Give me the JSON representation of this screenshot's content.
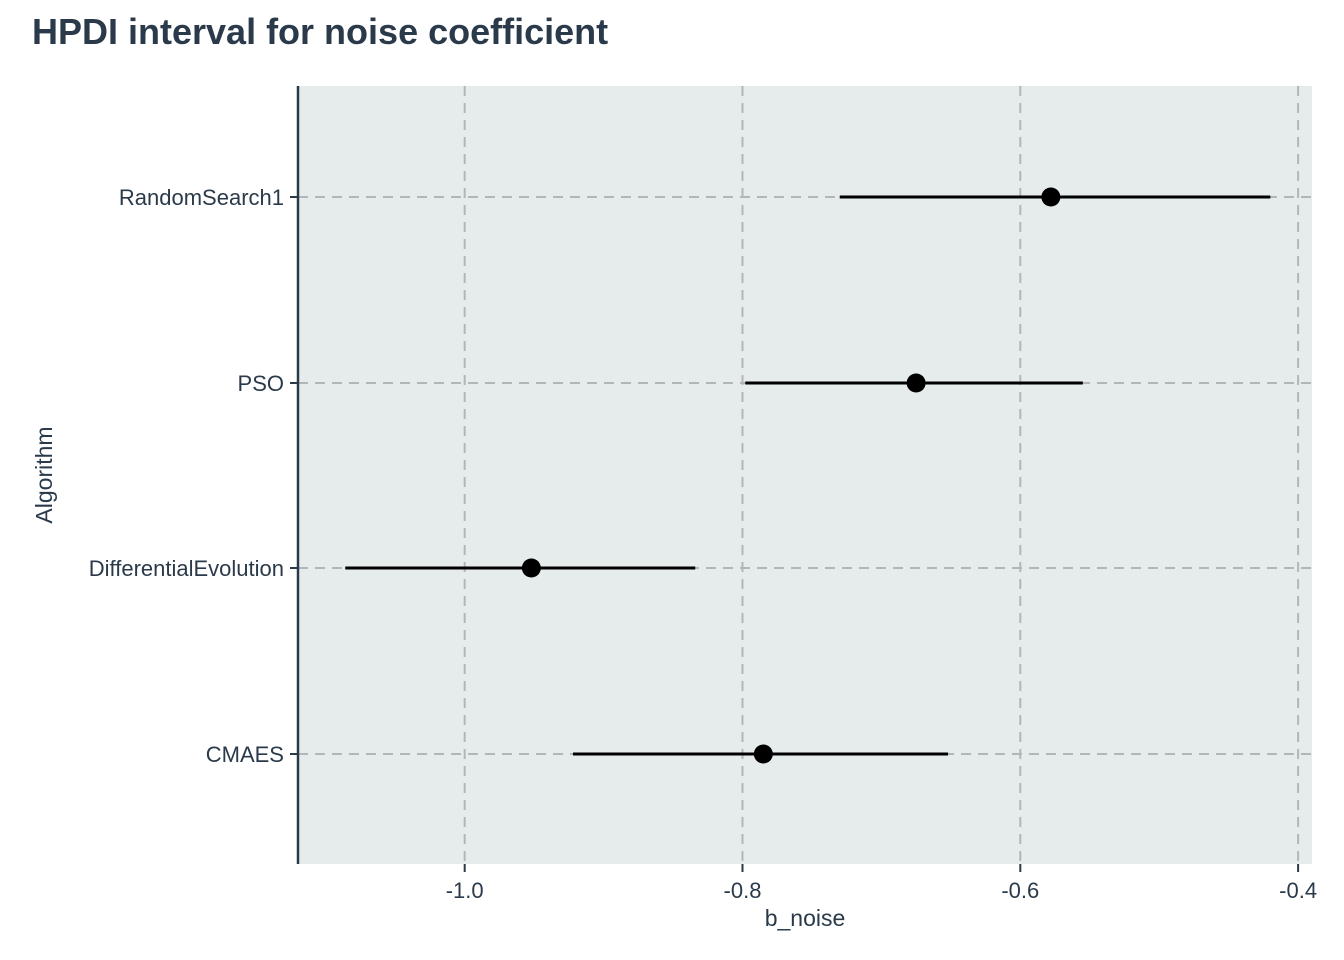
{
  "chart_data": {
    "type": "scatter",
    "title": "HPDI interval for noise coefficient",
    "xlabel": "b_noise",
    "ylabel": "Algorithm",
    "xlim": [
      -1.12,
      -0.39
    ],
    "xticks": [
      -1.0,
      -0.8,
      -0.6,
      -0.4
    ],
    "xtick_labels": [
      "-1.0",
      "-0.8",
      "-0.6",
      "-0.4"
    ],
    "categories": [
      "RandomSearch1",
      "PSO",
      "DifferentialEvolution",
      "CMAES"
    ],
    "points": [
      {
        "category": "RandomSearch1",
        "mean": -0.578,
        "lower": -0.73,
        "upper": -0.42
      },
      {
        "category": "PSO",
        "mean": -0.675,
        "lower": -0.798,
        "upper": -0.555
      },
      {
        "category": "DifferentialEvolution",
        "mean": -0.952,
        "lower": -1.086,
        "upper": -0.834
      },
      {
        "category": "CMAES",
        "mean": -0.785,
        "lower": -0.922,
        "upper": -0.652
      }
    ],
    "grid": true,
    "legend": "none",
    "panel_color": "#e6ecec",
    "grid_color": "#b3b6b7",
    "mark_color": "#000000"
  }
}
